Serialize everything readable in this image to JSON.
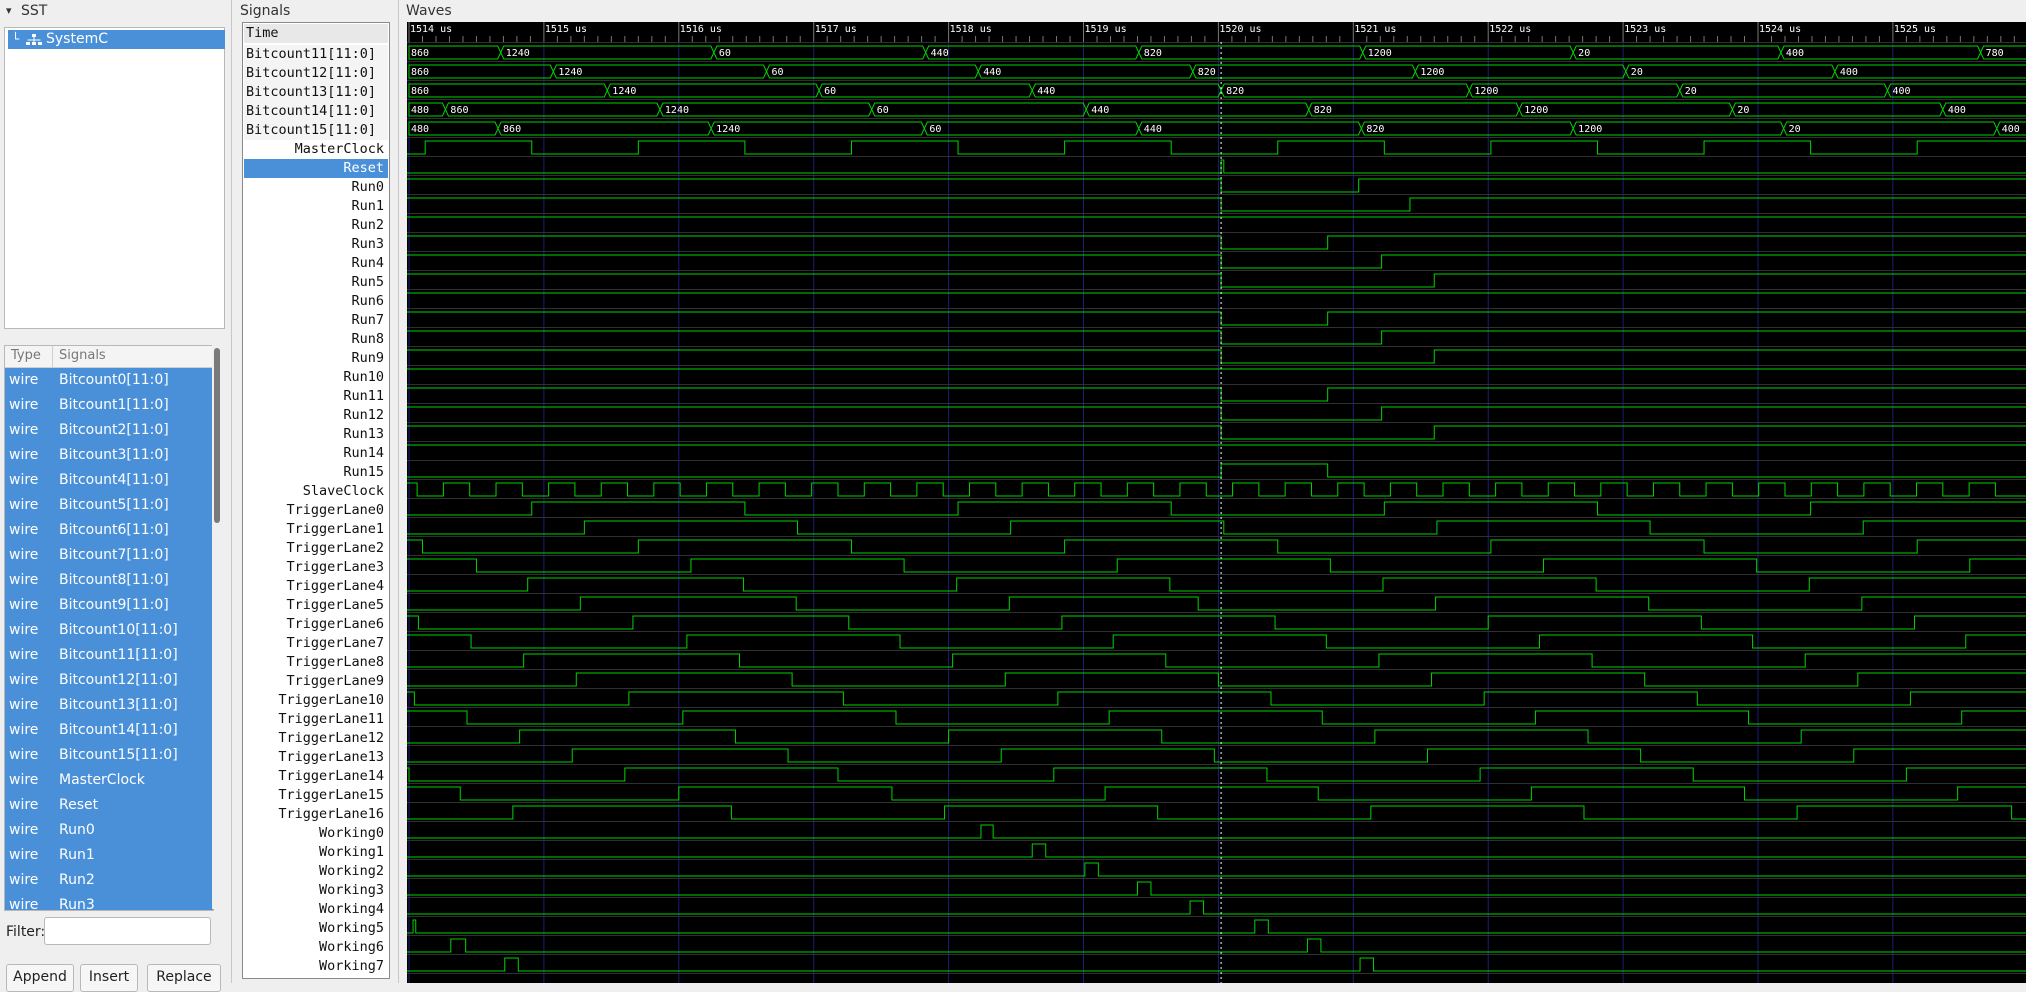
{
  "sst": {
    "title": "SST",
    "toggle_icon": "▾",
    "tree": [
      {
        "label": "SystemC",
        "selected": true
      }
    ]
  },
  "signal_list": {
    "headers": {
      "type": "Type",
      "name": "Signals"
    },
    "rows": [
      {
        "type": "wire",
        "name": "Bitcount0[11:0]"
      },
      {
        "type": "wire",
        "name": "Bitcount1[11:0]"
      },
      {
        "type": "wire",
        "name": "Bitcount2[11:0]"
      },
      {
        "type": "wire",
        "name": "Bitcount3[11:0]"
      },
      {
        "type": "wire",
        "name": "Bitcount4[11:0]"
      },
      {
        "type": "wire",
        "name": "Bitcount5[11:0]"
      },
      {
        "type": "wire",
        "name": "Bitcount6[11:0]"
      },
      {
        "type": "wire",
        "name": "Bitcount7[11:0]"
      },
      {
        "type": "wire",
        "name": "Bitcount8[11:0]"
      },
      {
        "type": "wire",
        "name": "Bitcount9[11:0]"
      },
      {
        "type": "wire",
        "name": "Bitcount10[11:0]"
      },
      {
        "type": "wire",
        "name": "Bitcount11[11:0]"
      },
      {
        "type": "wire",
        "name": "Bitcount12[11:0]"
      },
      {
        "type": "wire",
        "name": "Bitcount13[11:0]"
      },
      {
        "type": "wire",
        "name": "Bitcount14[11:0]"
      },
      {
        "type": "wire",
        "name": "Bitcount15[11:0]"
      },
      {
        "type": "wire",
        "name": "MasterClock"
      },
      {
        "type": "wire",
        "name": "Reset"
      },
      {
        "type": "wire",
        "name": "Run0"
      },
      {
        "type": "wire",
        "name": "Run1"
      },
      {
        "type": "wire",
        "name": "Run2"
      },
      {
        "type": "wire",
        "name": "Run3"
      }
    ],
    "filter_label": "Filter:",
    "filter_value": "",
    "buttons": {
      "append": "Append",
      "insert": "Insert",
      "replace": "Replace"
    }
  },
  "signals_panel": {
    "title": "Signals",
    "time_label": "Time",
    "selected": "Reset",
    "names": [
      "Bitcount11[11:0]",
      "Bitcount12[11:0]",
      "Bitcount13[11:0]",
      "Bitcount14[11:0]",
      "Bitcount15[11:0]",
      "MasterClock",
      "Reset",
      "Run0",
      "Run1",
      "Run2",
      "Run3",
      "Run4",
      "Run5",
      "Run6",
      "Run7",
      "Run8",
      "Run9",
      "Run10",
      "Run11",
      "Run12",
      "Run13",
      "Run14",
      "Run15",
      "SlaveClock",
      "TriggerLane0",
      "TriggerLane1",
      "TriggerLane2",
      "TriggerLane3",
      "TriggerLane4",
      "TriggerLane5",
      "TriggerLane6",
      "TriggerLane7",
      "TriggerLane8",
      "TriggerLane9",
      "TriggerLane10",
      "TriggerLane11",
      "TriggerLane12",
      "TriggerLane13",
      "TriggerLane14",
      "TriggerLane15",
      "TriggerLane16",
      "Working0",
      "Working1",
      "Working2",
      "Working3",
      "Working4",
      "Working5",
      "Working6",
      "Working7"
    ]
  },
  "waves": {
    "title": "Waves",
    "time_start_us": 1514,
    "time_end_us": 1525.93,
    "time_labels": [
      "1514 us",
      "1515 us",
      "1516 us",
      "1517 us",
      "1518 us",
      "1519 us",
      "1520 us",
      "1521 us",
      "1522 us",
      "1523 us",
      "1524 us",
      "1525 us"
    ],
    "colors": {
      "background": "#000000",
      "trace": "#00d400",
      "grid": "#1c1c7a",
      "marker": "#ffffff",
      "text": "#ffffff"
    },
    "buses": [
      {
        "name": "Bitcount11[11:0]",
        "segments": [
          {
            "t": 1514.0,
            "v": "860"
          },
          {
            "t": 1514.68,
            "v": "1240"
          },
          {
            "t": 1516.26,
            "v": "60"
          },
          {
            "t": 1517.83,
            "v": "440"
          },
          {
            "t": 1519.41,
            "v": "820"
          },
          {
            "t": 1521.07,
            "v": "1200"
          },
          {
            "t": 1522.63,
            "v": "20"
          },
          {
            "t": 1524.17,
            "v": "400"
          },
          {
            "t": 1525.65,
            "v": "780"
          }
        ]
      },
      {
        "name": "Bitcount12[11:0]",
        "segments": [
          {
            "t": 1514.0,
            "v": "860"
          },
          {
            "t": 1515.07,
            "v": "1240"
          },
          {
            "t": 1516.65,
            "v": "60"
          },
          {
            "t": 1518.22,
            "v": "440"
          },
          {
            "t": 1519.81,
            "v": "820"
          },
          {
            "t": 1521.46,
            "v": "1200"
          },
          {
            "t": 1523.02,
            "v": "20"
          },
          {
            "t": 1524.57,
            "v": "400"
          }
        ]
      },
      {
        "name": "Bitcount13[11:0]",
        "segments": [
          {
            "t": 1514.0,
            "v": "860"
          },
          {
            "t": 1515.47,
            "v": "1240"
          },
          {
            "t": 1517.04,
            "v": "60"
          },
          {
            "t": 1518.62,
            "v": "440"
          },
          {
            "t": 1520.02,
            "v": "820"
          },
          {
            "t": 1521.86,
            "v": "1200"
          },
          {
            "t": 1523.42,
            "v": "20"
          },
          {
            "t": 1524.96,
            "v": "400"
          }
        ]
      },
      {
        "name": "Bitcount14[11:0]",
        "segments": [
          {
            "t": 1514.0,
            "v": "480"
          },
          {
            "t": 1514.27,
            "v": "860"
          },
          {
            "t": 1515.86,
            "v": "1240"
          },
          {
            "t": 1517.43,
            "v": "60"
          },
          {
            "t": 1519.02,
            "v": "440"
          },
          {
            "t": 1520.67,
            "v": "820"
          },
          {
            "t": 1522.23,
            "v": "1200"
          },
          {
            "t": 1523.81,
            "v": "20"
          },
          {
            "t": 1525.37,
            "v": "400"
          }
        ]
      },
      {
        "name": "Bitcount15[11:0]",
        "segments": [
          {
            "t": 1514.0,
            "v": "480"
          },
          {
            "t": 1514.66,
            "v": "860"
          },
          {
            "t": 1516.24,
            "v": "1240"
          },
          {
            "t": 1517.82,
            "v": "60"
          },
          {
            "t": 1519.41,
            "v": "440"
          },
          {
            "t": 1521.06,
            "v": "820"
          },
          {
            "t": 1522.63,
            "v": "1200"
          },
          {
            "t": 1524.19,
            "v": "20"
          },
          {
            "t": 1525.77,
            "v": "400"
          }
        ]
      }
    ],
    "digital": {
      "MasterClock": {
        "init": 0,
        "edges": [
          1514.12,
          1514.91,
          1515.7,
          1516.49,
          1517.28,
          1518.07,
          1518.86,
          1519.65,
          1520.44,
          1521.23,
          1522.02,
          1522.81,
          1523.6,
          1524.39,
          1525.18
        ]
      },
      "Reset": {
        "init": 0,
        "edges": [
          1520.02,
          1520.04
        ]
      },
      "Run0": {
        "init": 1,
        "edges": [
          1520.02,
          1521.04
        ]
      },
      "Run1": {
        "init": 1,
        "edges": [
          1520.02,
          1521.42
        ]
      },
      "Run2": {
        "init": 1,
        "edges": []
      },
      "Run3": {
        "init": 1,
        "edges": [
          1520.02,
          1520.81
        ]
      },
      "Run4": {
        "init": 1,
        "edges": [
          1520.02,
          1521.21
        ]
      },
      "Run5": {
        "init": 1,
        "edges": [
          1520.02,
          1521.6
        ]
      },
      "Run6": {
        "init": 1,
        "edges": []
      },
      "Run7": {
        "init": 1,
        "edges": [
          1520.02,
          1520.81
        ]
      },
      "Run8": {
        "init": 1,
        "edges": [
          1520.02,
          1521.21
        ]
      },
      "Run9": {
        "init": 1,
        "edges": [
          1520.02,
          1521.6
        ]
      },
      "Run10": {
        "init": 1,
        "edges": []
      },
      "Run11": {
        "init": 1,
        "edges": [
          1520.02,
          1520.81
        ]
      },
      "Run12": {
        "init": 1,
        "edges": [
          1520.02,
          1521.21
        ]
      },
      "Run13": {
        "init": 1,
        "edges": [
          1520.02,
          1521.6
        ]
      },
      "Run14": {
        "init": 1,
        "edges": []
      },
      "Run15": {
        "init": 0,
        "edges": [
          1520.02,
          1520.81
        ]
      },
      "SlaveClock": {
        "clock": true,
        "init": 1,
        "start": 1514.06,
        "half": 0.195,
        "end": 1525.93
      },
      "TriggerLane0": {
        "init": 0,
        "edges": [
          1514.91,
          1516.49,
          1518.07,
          1519.65,
          1521.23,
          1522.81,
          1524.39
        ]
      },
      "TriggerLane1": {
        "init": 0,
        "edges": [
          1515.3,
          1516.88,
          1518.46,
          1520.04,
          1521.62,
          1523.2,
          1524.78
        ]
      },
      "TriggerLane2": {
        "init": 1,
        "edges": [
          1514.1,
          1515.7,
          1517.28,
          1518.86,
          1520.44,
          1522.02,
          1523.6,
          1525.18
        ]
      },
      "TriggerLane3": {
        "init": 1,
        "edges": [
          1514.5,
          1516.09,
          1517.67,
          1519.25,
          1520.83,
          1522.41,
          1523.99,
          1525.57
        ]
      },
      "TriggerLane4": {
        "init": 0,
        "edges": [
          1514.88,
          1516.48,
          1518.06,
          1519.64,
          1521.22,
          1522.8,
          1524.38
        ]
      },
      "TriggerLane5": {
        "init": 0,
        "edges": [
          1515.27,
          1516.87,
          1518.45,
          1519.85,
          1521.61,
          1523.19,
          1524.77
        ]
      },
      "TriggerLane6": {
        "init": 1,
        "edges": [
          1514.07,
          1515.66,
          1517.26,
          1518.84,
          1520.42,
          1522.0,
          1523.58,
          1525.16
        ]
      },
      "TriggerLane7": {
        "init": 1,
        "edges": [
          1514.46,
          1516.06,
          1517.64,
          1519.22,
          1520.8,
          1522.38,
          1523.96,
          1525.54
        ]
      },
      "TriggerLane8": {
        "init": 0,
        "edges": [
          1514.85,
          1516.45,
          1518.03,
          1519.61,
          1521.19,
          1522.77,
          1524.35
        ]
      },
      "TriggerLane9": {
        "init": 0,
        "edges": [
          1515.24,
          1516.84,
          1518.42,
          1520.0,
          1521.58,
          1523.16,
          1524.74
        ]
      },
      "TriggerLane10": {
        "init": 1,
        "edges": [
          1514.04,
          1515.63,
          1517.22,
          1518.81,
          1520.39,
          1521.97,
          1523.55,
          1525.13
        ]
      },
      "TriggerLane11": {
        "init": 1,
        "edges": [
          1514.43,
          1516.03,
          1517.61,
          1519.19,
          1520.77,
          1522.35,
          1523.93,
          1525.51
        ]
      },
      "TriggerLane12": {
        "init": 0,
        "edges": [
          1514.82,
          1516.42,
          1518.0,
          1519.58,
          1521.16,
          1522.74,
          1524.32
        ]
      },
      "TriggerLane13": {
        "init": 0,
        "edges": [
          1515.21,
          1516.81,
          1518.39,
          1519.97,
          1521.55,
          1523.13,
          1524.71
        ]
      },
      "TriggerLane14": {
        "init": 1,
        "edges": [
          1514.0,
          1515.6,
          1517.18,
          1518.78,
          1520.36,
          1521.94,
          1523.52,
          1525.1
        ]
      },
      "TriggerLane15": {
        "init": 1,
        "edges": [
          1514.38,
          1516.0,
          1517.58,
          1519.16,
          1520.74,
          1522.32,
          1523.9,
          1525.48
        ]
      },
      "TriggerLane16": {
        "init": 0,
        "edges": [
          1514.77,
          1516.39,
          1517.97,
          1519.55,
          1521.13,
          1522.71,
          1524.29,
          1525.88
        ]
      },
      "Working0": {
        "init": 0,
        "edges": [
          1518.24,
          1518.33
        ]
      },
      "Working1": {
        "init": 0,
        "edges": [
          1518.62,
          1518.72
        ]
      },
      "Working2": {
        "init": 0,
        "edges": [
          1519.01,
          1519.11
        ]
      },
      "Working3": {
        "init": 0,
        "edges": [
          1519.4,
          1519.5
        ]
      },
      "Working4": {
        "init": 0,
        "edges": [
          1519.79,
          1519.89
        ]
      },
      "Working5": {
        "init": 0,
        "edges": [
          1514.03,
          1514.05,
          1520.27,
          1520.37
        ]
      },
      "Working6": {
        "init": 0,
        "edges": [
          1514.31,
          1514.42,
          1520.66,
          1520.76
        ]
      },
      "Working7": {
        "init": 0,
        "edges": [
          1514.71,
          1514.81,
          1521.05,
          1521.15
        ]
      }
    }
  }
}
